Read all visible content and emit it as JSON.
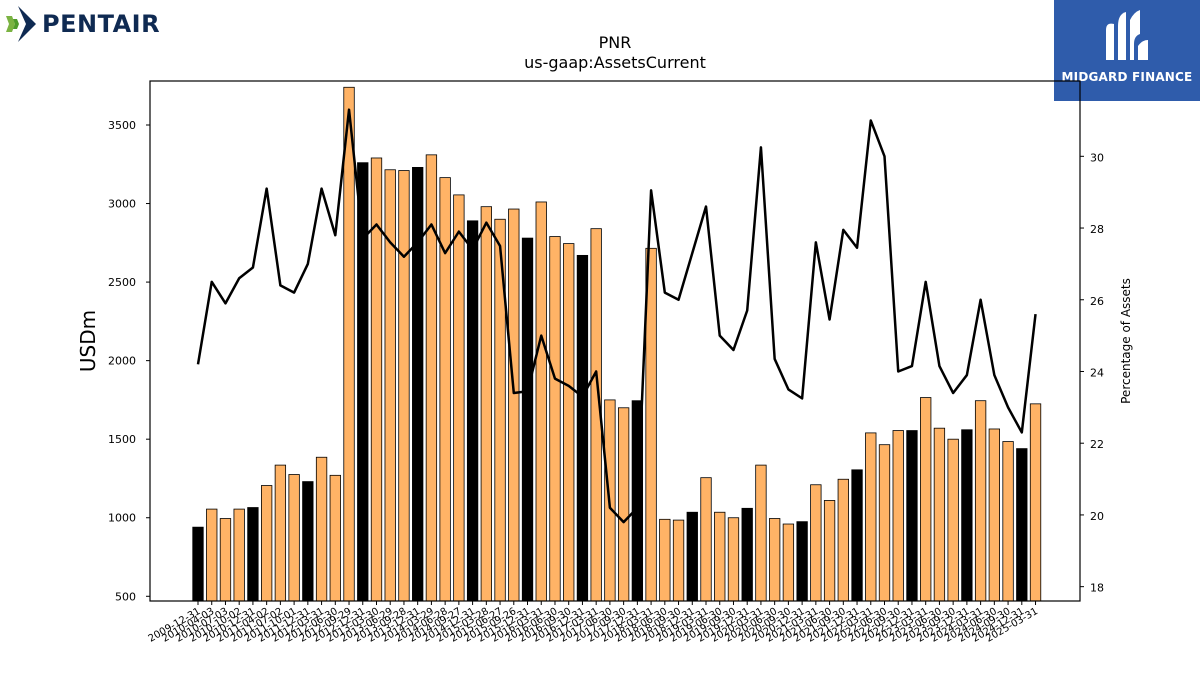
{
  "brand": {
    "company_logo_text": "PENTAIR",
    "publisher_logo_text": "MIDGARD FINANCE"
  },
  "chart_data": {
    "type": "bar",
    "title": "PNR",
    "subtitle": "us-gaap:AssetsCurrent",
    "ylabel": "USDm",
    "y2label": "Percentage of Assets",
    "ylim": [
      470,
      3780
    ],
    "y2lim": [
      17.6,
      32.1
    ],
    "yticks": [
      500,
      1000,
      1500,
      2000,
      2500,
      3000,
      3500
    ],
    "y2ticks": [
      18,
      20,
      22,
      24,
      26,
      28,
      30
    ],
    "colors": {
      "bar_default": "#ffb366",
      "bar_highlight": "#000000",
      "line": "#000000"
    },
    "categories": [
      "2009-12-31",
      "2010-04-03",
      "2010-07-03",
      "2010-10-02",
      "2010-12-31",
      "2011-04-02",
      "2011-07-02",
      "2011-10-01",
      "2011-12-31",
      "2012-03-31",
      "2012-06-30",
      "2012-09-29",
      "2012-12-31",
      "2013-03-30",
      "2013-06-29",
      "2013-09-28",
      "2013-12-31",
      "2014-03-29",
      "2014-06-28",
      "2014-09-27",
      "2014-12-31",
      "2015-03-28",
      "2015-06-27",
      "2015-09-26",
      "2015-12-31",
      "2016-03-31",
      "2016-06-30",
      "2016-09-30",
      "2016-12-31",
      "2017-03-31",
      "2017-06-30",
      "2017-09-30",
      "2017-12-31",
      "2018-03-31",
      "2018-06-30",
      "2018-09-30",
      "2018-12-31",
      "2019-03-31",
      "2019-06-30",
      "2019-09-30",
      "2019-12-31",
      "2020-03-31",
      "2020-06-30",
      "2020-09-30",
      "2020-12-31",
      "2021-03-31",
      "2021-06-30",
      "2021-09-30",
      "2021-12-31",
      "2022-03-31",
      "2022-06-30",
      "2022-09-30",
      "2022-12-31",
      "2023-03-31",
      "2023-06-30",
      "2023-09-30",
      "2023-12-31",
      "2024-03-31",
      "2024-06-30",
      "2024-09-30",
      "2024-12-31",
      "2025-03-31"
    ],
    "highlight": [
      true,
      false,
      false,
      false,
      true,
      false,
      false,
      false,
      true,
      false,
      false,
      false,
      true,
      false,
      false,
      false,
      true,
      false,
      false,
      false,
      true,
      false,
      false,
      false,
      true,
      false,
      false,
      false,
      true,
      false,
      false,
      false,
      true,
      false,
      false,
      false,
      true,
      false,
      false,
      false,
      true,
      false,
      false,
      false,
      true,
      false,
      false,
      false,
      true,
      false,
      false,
      false,
      true,
      false,
      false,
      false,
      true,
      false,
      false,
      false,
      true,
      false
    ],
    "series": [
      {
        "kind": "bar",
        "axis": "left",
        "values": [
          940,
          1055,
          995,
          1055,
          1065,
          1205,
          1335,
          1275,
          1230,
          1385,
          1270,
          3740,
          3260,
          3290,
          3215,
          3210,
          3230,
          3310,
          3165,
          3055,
          2890,
          2980,
          2900,
          2965,
          2780,
          3010,
          2790,
          2745,
          2670,
          2840,
          1750,
          1700,
          1745,
          2715,
          990,
          985,
          1035,
          1255,
          1035,
          1000,
          1060,
          1335,
          995,
          960,
          975,
          1210,
          1110,
          1245,
          1305,
          1540,
          1465,
          1555,
          1555,
          1765,
          1570,
          1500,
          1560,
          1745,
          1565,
          1485,
          1440,
          1725
        ]
      },
      {
        "kind": "line",
        "axis": "right",
        "values": [
          24.2,
          26.5,
          25.9,
          26.6,
          26.9,
          29.1,
          26.4,
          26.2,
          27.0,
          29.1,
          27.8,
          31.3,
          27.7,
          28.1,
          27.6,
          27.2,
          27.6,
          28.1,
          27.3,
          27.9,
          27.4,
          28.15,
          27.5,
          23.4,
          23.45,
          25.0,
          23.8,
          23.6,
          23.3,
          24.0,
          20.2,
          19.8,
          20.2,
          29.05,
          26.2,
          26.0,
          27.3,
          28.6,
          25.0,
          24.6,
          25.7,
          30.25,
          24.35,
          23.5,
          23.25,
          27.6,
          25.45,
          27.95,
          27.45,
          31.0,
          30.0,
          24.0,
          24.15,
          26.5,
          24.15,
          23.4,
          23.9,
          26.0,
          23.9,
          23.0,
          22.3,
          25.6
        ]
      }
    ]
  }
}
